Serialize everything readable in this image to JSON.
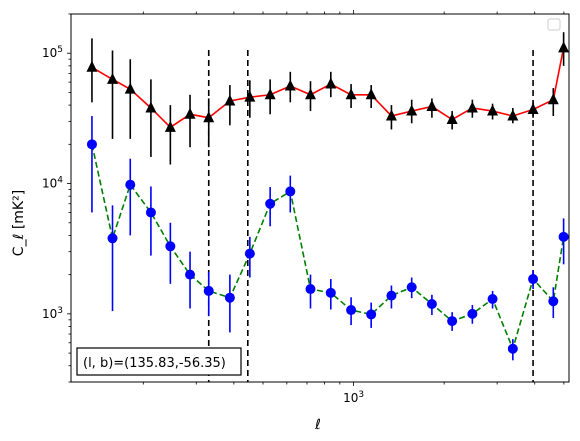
{
  "chart_data": {
    "type": "line",
    "title": "",
    "xlabel": "ℓ",
    "ylabel": "C_ℓ [mK²]",
    "xscale": "log",
    "yscale": "log",
    "xlim": [
      115,
      5200
    ],
    "ylim": [
      300,
      200000
    ],
    "x_tick_labels": [
      {
        "value": 1000,
        "label": "10^3"
      }
    ],
    "y_tick_labels": [
      {
        "value": 1000,
        "label": "10^3"
      },
      {
        "value": 10000,
        "label": "10^4"
      },
      {
        "value": 100000,
        "label": "10^5"
      }
    ],
    "vlines": [
      330,
      445,
      3950
    ],
    "annotation": "(l, b)=(135.83,-56.35)",
    "legend": {
      "placement": "top-right",
      "entries": []
    },
    "series": [
      {
        "marker": "triangle",
        "color": "#000000",
        "line_color": "#ff0000",
        "line_style": "solid",
        "points": [
          {
            "x": 135,
            "y": 78000,
            "lo": 42000,
            "hi": 130000
          },
          {
            "x": 158,
            "y": 63000,
            "lo": 22000,
            "hi": 105000
          },
          {
            "x": 181,
            "y": 53000,
            "lo": 22000,
            "hi": 90000
          },
          {
            "x": 212,
            "y": 38000,
            "lo": 16000,
            "hi": 63000
          },
          {
            "x": 246,
            "y": 27000,
            "lo": 14000,
            "hi": 40000
          },
          {
            "x": 286,
            "y": 34000,
            "lo": 19000,
            "hi": 48000
          },
          {
            "x": 330,
            "y": 32000,
            "lo": 19000,
            "hi": 45000
          },
          {
            "x": 388,
            "y": 43000,
            "lo": 28000,
            "hi": 57000
          },
          {
            "x": 452,
            "y": 46000,
            "lo": 32000,
            "hi": 62000
          },
          {
            "x": 528,
            "y": 48000,
            "lo": 34000,
            "hi": 63000
          },
          {
            "x": 616,
            "y": 56000,
            "lo": 42000,
            "hi": 72000
          },
          {
            "x": 719,
            "y": 48000,
            "lo": 36000,
            "hi": 61000
          },
          {
            "x": 840,
            "y": 58000,
            "lo": 46000,
            "hi": 72000
          },
          {
            "x": 981,
            "y": 48000,
            "lo": 38000,
            "hi": 58000
          },
          {
            "x": 1144,
            "y": 48000,
            "lo": 38000,
            "hi": 57000
          },
          {
            "x": 1336,
            "y": 33000,
            "lo": 26000,
            "hi": 40000
          },
          {
            "x": 1560,
            "y": 36000,
            "lo": 29000,
            "hi": 44000
          },
          {
            "x": 1821,
            "y": 39000,
            "lo": 32000,
            "hi": 45000
          },
          {
            "x": 2126,
            "y": 31000,
            "lo": 26000,
            "hi": 36000
          },
          {
            "x": 2482,
            "y": 38000,
            "lo": 32000,
            "hi": 44000
          },
          {
            "x": 2897,
            "y": 36000,
            "lo": 31000,
            "hi": 41000
          },
          {
            "x": 3383,
            "y": 33000,
            "lo": 29000,
            "hi": 38000
          },
          {
            "x": 3950,
            "y": 37000,
            "lo": 32000,
            "hi": 42000
          },
          {
            "x": 4611,
            "y": 44000,
            "lo": 33000,
            "hi": 54000
          },
          {
            "x": 4990,
            "y": 110000,
            "lo": 80000,
            "hi": 145000
          }
        ]
      },
      {
        "marker": "circle",
        "color": "#0000ff",
        "line_color": "#008000",
        "line_style": "dashed",
        "points": [
          {
            "x": 135,
            "y": 20000,
            "lo": 6000,
            "hi": 33000
          },
          {
            "x": 158,
            "y": 3800,
            "lo": 1050,
            "hi": 6800
          },
          {
            "x": 181,
            "y": 9800,
            "lo": 4000,
            "hi": 15500
          },
          {
            "x": 212,
            "y": 6000,
            "lo": 2800,
            "hi": 9500
          },
          {
            "x": 246,
            "y": 3300,
            "lo": 1700,
            "hi": 5000
          },
          {
            "x": 286,
            "y": 2000,
            "lo": 1100,
            "hi": 3000
          },
          {
            "x": 330,
            "y": 1500,
            "lo": 960,
            "hi": 2100
          },
          {
            "x": 388,
            "y": 1330,
            "lo": 720,
            "hi": 2000
          },
          {
            "x": 452,
            "y": 2900,
            "lo": 1900,
            "hi": 3900
          },
          {
            "x": 528,
            "y": 7000,
            "lo": 4700,
            "hi": 9400
          },
          {
            "x": 616,
            "y": 8700,
            "lo": 6000,
            "hi": 11500
          },
          {
            "x": 719,
            "y": 1550,
            "lo": 1100,
            "hi": 2000
          },
          {
            "x": 840,
            "y": 1450,
            "lo": 1080,
            "hi": 1850
          },
          {
            "x": 981,
            "y": 1070,
            "lo": 820,
            "hi": 1340
          },
          {
            "x": 1144,
            "y": 990,
            "lo": 780,
            "hi": 1220
          },
          {
            "x": 1336,
            "y": 1380,
            "lo": 1100,
            "hi": 1650
          },
          {
            "x": 1560,
            "y": 1600,
            "lo": 1320,
            "hi": 1900
          },
          {
            "x": 1821,
            "y": 1190,
            "lo": 980,
            "hi": 1400
          },
          {
            "x": 2126,
            "y": 880,
            "lo": 740,
            "hi": 1030
          },
          {
            "x": 2482,
            "y": 1000,
            "lo": 840,
            "hi": 1170
          },
          {
            "x": 2897,
            "y": 1300,
            "lo": 1100,
            "hi": 1500
          },
          {
            "x": 3383,
            "y": 540,
            "lo": 440,
            "hi": 640
          },
          {
            "x": 3950,
            "y": 1850,
            "lo": 1550,
            "hi": 2150
          },
          {
            "x": 4611,
            "y": 1250,
            "lo": 930,
            "hi": 1600
          },
          {
            "x": 4990,
            "y": 3900,
            "lo": 2400,
            "hi": 5400
          }
        ]
      }
    ]
  }
}
